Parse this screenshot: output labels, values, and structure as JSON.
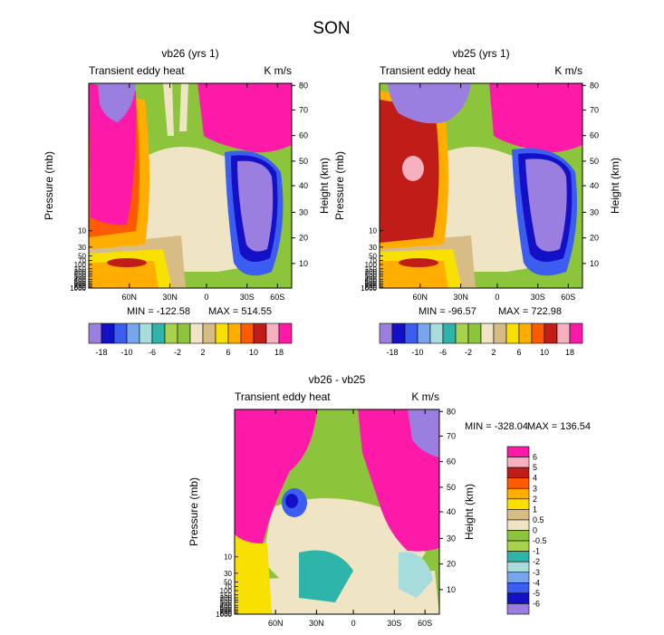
{
  "figure": {
    "title": "SON"
  },
  "colors": {
    "panel": [
      "#9a7fe0",
      "#1410c8",
      "#3c5ef0",
      "#78a6ee",
      "#a6dcdc",
      "#2eb4a8",
      "#a8d24e",
      "#8cc43c",
      "#efe4c4",
      "#d8bc86",
      "#f8e000",
      "#ffae00",
      "#fe5a00",
      "#c01c18",
      "#f6b0c0",
      "#fe1aa8"
    ],
    "diff": [
      "#9a7fe0",
      "#1410c8",
      "#3c5ef0",
      "#78a6ee",
      "#a6dcdc",
      "#2eb4a8",
      "#a8d24e",
      "#8cc43c",
      "#efe4c4",
      "#d8bc86",
      "#f8e000",
      "#ffae00",
      "#fe5a00",
      "#c01c18",
      "#f6b0c0",
      "#fe1aa8"
    ]
  },
  "chart_data": [
    {
      "type": "heatmap",
      "title": "vb26 (yrs 1)",
      "left_label": "Transient eddy heat",
      "right_label": "K m/s",
      "ylabel": "Pressure (mb)",
      "ylabel_right": "Height (km)",
      "x_ticks": [
        "60N",
        "30N",
        "0",
        "30S",
        "60S"
      ],
      "p_ticks": [
        "10",
        "30",
        "50",
        "70",
        "100",
        "150",
        "200",
        "250",
        "300",
        "400",
        "500",
        "600",
        "700",
        "850",
        "1000"
      ],
      "h_ticks": [
        "10",
        "20",
        "30",
        "40",
        "50",
        "60",
        "70",
        "80"
      ],
      "min_text": "MIN = -122.58",
      "max_text": "MAX = 514.55",
      "levels": [
        "-18",
        "-10",
        "-6",
        "-2",
        "2",
        "6",
        "10",
        "18"
      ]
    },
    {
      "type": "heatmap",
      "title": "vb25 (yrs 1)",
      "left_label": "Transient eddy heat",
      "right_label": "K m/s",
      "ylabel": "Pressure (mb)",
      "ylabel_right": "Height (km)",
      "x_ticks": [
        "60N",
        "30N",
        "0",
        "30S",
        "60S"
      ],
      "p_ticks": [
        "10",
        "30",
        "50",
        "70",
        "100",
        "150",
        "200",
        "250",
        "300",
        "400",
        "500",
        "600",
        "700",
        "850",
        "1000"
      ],
      "h_ticks": [
        "10",
        "20",
        "30",
        "40",
        "50",
        "60",
        "70",
        "80"
      ],
      "min_text": "MIN = -96.57",
      "max_text": "MAX = 722.98",
      "levels": [
        "-18",
        "-10",
        "-6",
        "-2",
        "2",
        "6",
        "10",
        "18"
      ]
    },
    {
      "type": "heatmap",
      "title": "vb26 - vb25",
      "left_label": "Transient eddy heat",
      "right_label": "K m/s",
      "ylabel": "Pressure (mb)",
      "ylabel_right": "Height (km)",
      "x_ticks": [
        "60N",
        "30N",
        "0",
        "30S",
        "60S"
      ],
      "p_ticks": [
        "10",
        "30",
        "50",
        "70",
        "100",
        "150",
        "200",
        "250",
        "300",
        "400",
        "500",
        "600",
        "700",
        "850",
        "1000"
      ],
      "h_ticks": [
        "10",
        "20",
        "30",
        "40",
        "50",
        "60",
        "70",
        "80"
      ],
      "min_text": "MIN = -328.04",
      "max_text": "MAX = 136.54",
      "levels": [
        "-6",
        "-5",
        "-4",
        "-3",
        "-2",
        "-1",
        "-0.5",
        "0",
        "0.5",
        "1",
        "2",
        "3",
        "4",
        "5",
        "6"
      ]
    }
  ]
}
